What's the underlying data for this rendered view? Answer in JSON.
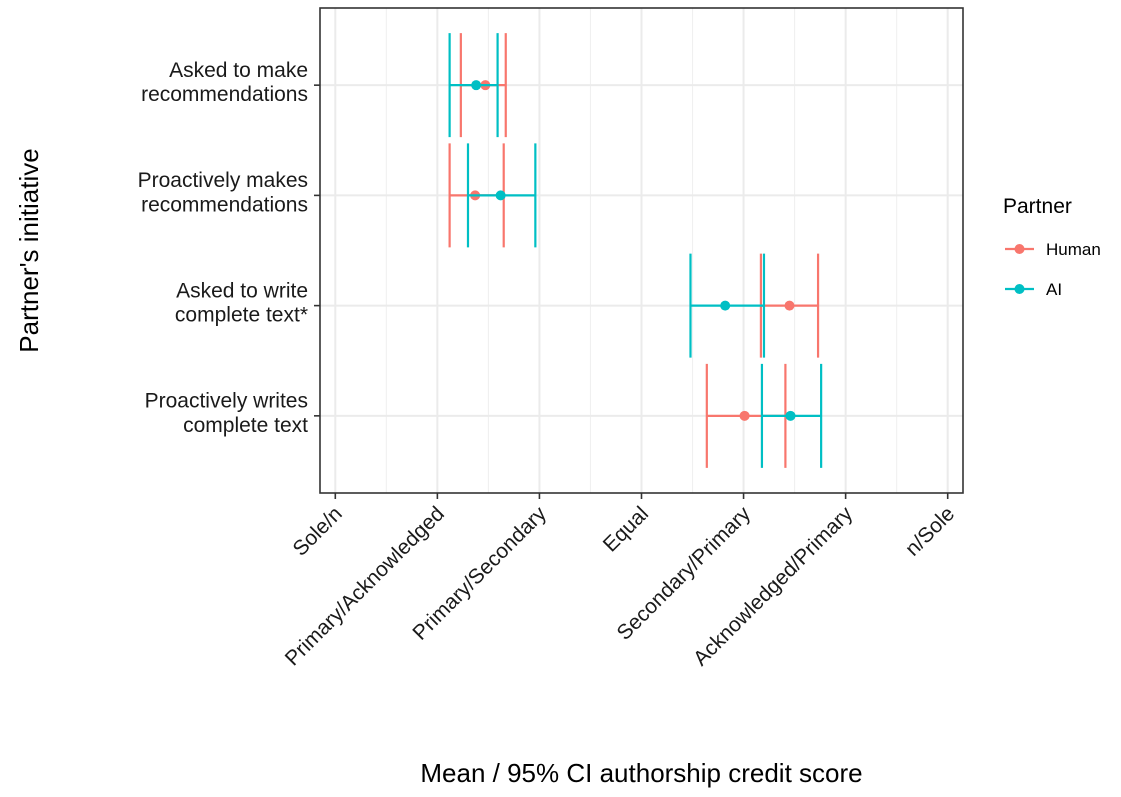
{
  "chart_data": {
    "type": "errorbar",
    "orientation": "horizontal",
    "xlabel": "Mean / 95% CI authorship credit score",
    "ylabel": "Partner's initiative",
    "x_categories": [
      "Sole/n",
      "Primary/Acknowledged",
      "Primary/Secondary",
      "Equal",
      "Secondary/Primary",
      "Acknowledged/Primary",
      "n/Sole"
    ],
    "xlim": [
      -3.15,
      3.15
    ],
    "categories": [
      [
        "Asked to make",
        "recommendations"
      ],
      [
        "Proactively makes",
        "recommendations"
      ],
      [
        "Asked to write",
        "complete text*"
      ],
      [
        "Proactively writes",
        "complete text"
      ]
    ],
    "series": [
      {
        "name": "Human",
        "color": "#F8766D",
        "points": [
          {
            "mean": -1.53,
            "low": -1.77,
            "high": -1.33
          },
          {
            "mean": -1.63,
            "low": -1.88,
            "high": -1.35
          },
          {
            "mean": 1.45,
            "low": 1.17,
            "high": 1.73
          },
          {
            "mean": 1.01,
            "low": 0.64,
            "high": 1.41
          }
        ]
      },
      {
        "name": "AI",
        "color": "#00BFC4",
        "points": [
          {
            "mean": -1.62,
            "low": -1.88,
            "high": -1.41
          },
          {
            "mean": -1.38,
            "low": -1.7,
            "high": -1.04
          },
          {
            "mean": 0.82,
            "low": 0.48,
            "high": 1.2
          },
          {
            "mean": 1.46,
            "low": 1.18,
            "high": 1.76
          }
        ]
      }
    ],
    "legend": {
      "title": "Partner",
      "position": "right"
    },
    "grid": true
  }
}
